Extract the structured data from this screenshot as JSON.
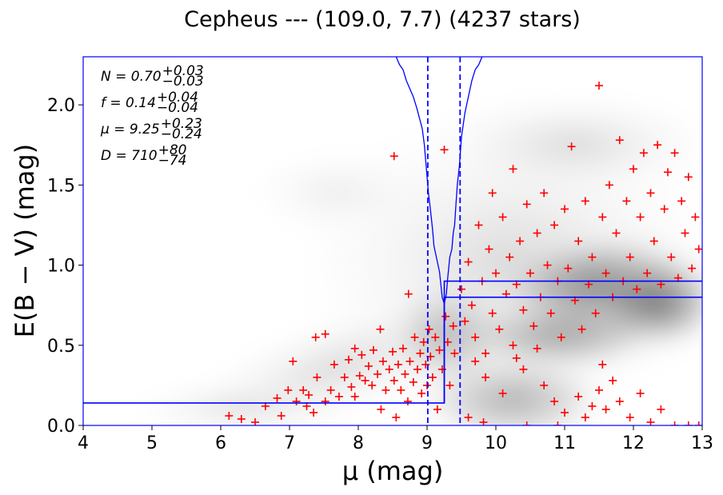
{
  "chart_data": {
    "type": "scatter",
    "title": "Cepheus --- (109.0, 7.7) (4237 stars)",
    "xlabel": "μ (mag)",
    "ylabel": "E(B − V) (mag)",
    "xlim": [
      4,
      13
    ],
    "ylim": [
      0,
      2.3
    ],
    "xticks": [
      4,
      5,
      6,
      7,
      8,
      9,
      10,
      11,
      12,
      13
    ],
    "yticks": [
      0.0,
      0.5,
      1.0,
      1.5,
      2.0
    ],
    "xtick_labels": [
      "4",
      "5",
      "6",
      "7",
      "8",
      "9",
      "10",
      "11",
      "12",
      "13"
    ],
    "ytick_labels": [
      "0.0",
      "0.5",
      "1.0",
      "1.5",
      "2.0"
    ],
    "grid": false,
    "background": "grayscale density of stars",
    "colors": {
      "stars": "#ff0000",
      "model": "#0000ff",
      "frame": "#0000ff"
    },
    "annotations": [
      {
        "text": "N = 0.70",
        "sup": "+0.03",
        "sub": "−0.03"
      },
      {
        "text": "f = 0.14",
        "sup": "+0.04",
        "sub": "−0.04"
      },
      {
        "text": "μ = 9.25",
        "sup": "+0.23",
        "sub": "−0.24"
      },
      {
        "text": "D = 710",
        "sup": "+80",
        "sub": "−74"
      }
    ],
    "vlines": [
      9.01,
      9.48
    ],
    "step_model_lower": [
      [
        4,
        0.14
      ],
      [
        9.25,
        0.14
      ],
      [
        9.25,
        0.8
      ],
      [
        13,
        0.8
      ]
    ],
    "step_model_upper": [
      [
        9.25,
        0.14
      ],
      [
        9.25,
        0.9
      ],
      [
        13,
        0.9
      ]
    ],
    "likelihood_curve": [
      [
        8.55,
        2.3
      ],
      [
        8.6,
        2.25
      ],
      [
        8.65,
        2.22
      ],
      [
        8.7,
        2.15
      ],
      [
        8.75,
        2.1
      ],
      [
        8.8,
        2.05
      ],
      [
        8.85,
        1.98
      ],
      [
        8.9,
        1.9
      ],
      [
        8.93,
        1.85
      ],
      [
        8.96,
        1.75
      ],
      [
        8.98,
        1.65
      ],
      [
        9.0,
        1.55
      ],
      [
        9.02,
        1.45
      ],
      [
        9.04,
        1.38
      ],
      [
        9.06,
        1.3
      ],
      [
        9.08,
        1.22
      ],
      [
        9.1,
        1.12
      ],
      [
        9.12,
        1.08
      ],
      [
        9.15,
        1.02
      ],
      [
        9.18,
        0.96
      ],
      [
        9.2,
        0.88
      ],
      [
        9.22,
        0.8
      ],
      [
        9.25,
        0.76
      ],
      [
        9.28,
        0.82
      ],
      [
        9.3,
        0.92
      ],
      [
        9.33,
        1.05
      ],
      [
        9.36,
        1.1
      ],
      [
        9.38,
        1.2
      ],
      [
        9.4,
        1.25
      ],
      [
        9.42,
        1.38
      ],
      [
        9.44,
        1.5
      ],
      [
        9.47,
        1.62
      ],
      [
        9.5,
        1.8
      ],
      [
        9.55,
        1.95
      ],
      [
        9.6,
        2.05
      ],
      [
        9.65,
        2.15
      ],
      [
        9.7,
        2.22
      ],
      [
        9.75,
        2.25
      ],
      [
        9.8,
        2.3
      ]
    ],
    "series": [
      {
        "values": [
          [
            6.12,
            0.06
          ],
          [
            6.3,
            0.04
          ],
          [
            6.5,
            0.02
          ],
          [
            6.65,
            0.12
          ],
          [
            6.82,
            0.17
          ],
          [
            6.88,
            0.06
          ],
          [
            6.98,
            0.22
          ],
          [
            7.1,
            0.15
          ],
          [
            7.2,
            0.22
          ],
          [
            7.25,
            0.12
          ],
          [
            7.28,
            0.19
          ],
          [
            7.35,
            0.08
          ],
          [
            7.4,
            0.3
          ],
          [
            7.52,
            0.15
          ],
          [
            7.6,
            0.22
          ],
          [
            7.65,
            0.38
          ],
          [
            7.72,
            0.18
          ],
          [
            7.8,
            0.3
          ],
          [
            7.86,
            0.41
          ],
          [
            7.9,
            0.24
          ],
          [
            7.95,
            0.18
          ],
          [
            8.02,
            0.31
          ],
          [
            8.05,
            0.44
          ],
          [
            8.1,
            0.28
          ],
          [
            8.15,
            0.37
          ],
          [
            8.2,
            0.25
          ],
          [
            8.22,
            0.47
          ],
          [
            8.28,
            0.32
          ],
          [
            8.33,
            0.1
          ],
          [
            8.36,
            0.4
          ],
          [
            8.4,
            0.22
          ],
          [
            8.45,
            0.35
          ],
          [
            8.5,
            0.46
          ],
          [
            8.52,
            0.28
          ],
          [
            8.55,
            0.05
          ],
          [
            8.58,
            0.38
          ],
          [
            8.62,
            0.22
          ],
          [
            8.65,
            0.48
          ],
          [
            8.68,
            0.32
          ],
          [
            8.72,
            0.15
          ],
          [
            8.75,
            0.4
          ],
          [
            8.8,
            0.27
          ],
          [
            8.82,
            0.55
          ],
          [
            8.86,
            0.35
          ],
          [
            8.9,
            0.45
          ],
          [
            8.92,
            0.2
          ],
          [
            8.95,
            0.52
          ],
          [
            8.98,
            0.38
          ],
          [
            9.0,
            0.25
          ],
          [
            9.03,
            0.6
          ],
          [
            9.05,
            0.43
          ],
          [
            9.08,
            0.3
          ],
          [
            9.12,
            0.55
          ],
          [
            9.15,
            0.1
          ],
          [
            9.18,
            0.47
          ],
          [
            9.22,
            0.35
          ],
          [
            9.25,
            1.72
          ],
          [
            9.27,
            0.68
          ],
          [
            9.3,
            0.52
          ],
          [
            9.33,
            0.25
          ],
          [
            9.38,
            0.62
          ],
          [
            9.4,
            0.45
          ],
          [
            8.52,
            1.68
          ],
          [
            8.73,
            0.82
          ],
          [
            7.52,
            0.57
          ],
          [
            7.95,
            0.48
          ],
          [
            7.38,
            0.55
          ],
          [
            8.32,
            0.6
          ],
          [
            7.05,
            0.4
          ]
        ]
      },
      {
        "values": [
          [
            9.5,
            0.85
          ],
          [
            9.55,
            0.65
          ],
          [
            9.6,
            1.02
          ],
          [
            9.65,
            0.75
          ],
          [
            9.7,
            0.55
          ],
          [
            9.75,
            1.25
          ],
          [
            9.8,
            0.9
          ],
          [
            9.85,
            0.45
          ],
          [
            9.9,
            1.1
          ],
          [
            9.95,
            0.7
          ],
          [
            10.0,
            0.95
          ],
          [
            10.05,
            0.6
          ],
          [
            10.1,
            1.3
          ],
          [
            10.15,
            0.82
          ],
          [
            10.2,
            1.05
          ],
          [
            10.25,
            0.5
          ],
          [
            10.3,
            0.88
          ],
          [
            10.35,
            1.15
          ],
          [
            10.4,
            0.72
          ],
          [
            10.45,
            1.38
          ],
          [
            10.5,
            0.95
          ],
          [
            10.55,
            0.62
          ],
          [
            10.6,
            1.2
          ],
          [
            10.65,
            0.8
          ],
          [
            10.7,
            1.45
          ],
          [
            10.75,
            1.0
          ],
          [
            10.8,
            0.7
          ],
          [
            10.85,
            1.25
          ],
          [
            10.9,
            0.9
          ],
          [
            10.95,
            0.55
          ],
          [
            11.0,
            1.35
          ],
          [
            11.05,
            0.98
          ],
          [
            11.1,
            1.74
          ],
          [
            11.15,
            0.78
          ],
          [
            11.2,
            1.15
          ],
          [
            11.25,
            0.6
          ],
          [
            11.3,
            1.4
          ],
          [
            11.35,
            0.88
          ],
          [
            11.4,
            1.05
          ],
          [
            11.45,
            0.7
          ],
          [
            11.5,
            2.12
          ],
          [
            11.55,
            1.3
          ],
          [
            11.6,
            0.95
          ],
          [
            11.65,
            1.5
          ],
          [
            11.7,
            0.8
          ],
          [
            11.75,
            1.2
          ],
          [
            11.8,
            1.78
          ],
          [
            11.85,
            0.9
          ],
          [
            11.9,
            1.4
          ],
          [
            11.95,
            1.05
          ],
          [
            12.0,
            1.6
          ],
          [
            12.05,
            0.85
          ],
          [
            12.1,
            1.3
          ],
          [
            12.15,
            1.7
          ],
          [
            12.2,
            0.95
          ],
          [
            12.25,
            1.45
          ],
          [
            12.3,
            1.15
          ],
          [
            12.35,
            1.75
          ],
          [
            12.4,
            0.88
          ],
          [
            12.45,
            1.35
          ],
          [
            12.5,
            1.58
          ],
          [
            12.55,
            1.05
          ],
          [
            12.6,
            1.7
          ],
          [
            12.65,
            0.92
          ],
          [
            12.7,
            1.4
          ],
          [
            12.75,
            1.2
          ],
          [
            12.8,
            1.55
          ],
          [
            12.85,
            0.98
          ],
          [
            12.9,
            1.3
          ],
          [
            12.95,
            1.1
          ],
          [
            9.85,
            0.3
          ],
          [
            10.1,
            0.2
          ],
          [
            10.4,
            0.35
          ],
          [
            10.7,
            0.25
          ],
          [
            10.85,
            0.15
          ],
          [
            11.0,
            0.08
          ],
          [
            11.2,
            0.18
          ],
          [
            11.3,
            0.05
          ],
          [
            11.4,
            0.12
          ],
          [
            11.5,
            0.22
          ],
          [
            11.6,
            0.1
          ],
          [
            11.7,
            0.28
          ],
          [
            11.8,
            0.15
          ],
          [
            11.95,
            0.05
          ],
          [
            12.1,
            0.2
          ],
          [
            12.25,
            0.02
          ],
          [
            12.4,
            0.1
          ],
          [
            12.6,
            0.0
          ],
          [
            12.8,
            0.0
          ],
          [
            12.95,
            0.0
          ],
          [
            9.6,
            0.05
          ],
          [
            9.82,
            0.02
          ],
          [
            10.45,
            0.0
          ],
          [
            10.9,
            0.0
          ],
          [
            11.55,
            0.38
          ],
          [
            10.3,
            0.42
          ],
          [
            10.6,
            0.48
          ],
          [
            9.7,
            0.4
          ],
          [
            9.95,
            1.45
          ],
          [
            10.25,
            1.6
          ]
        ]
      }
    ]
  }
}
